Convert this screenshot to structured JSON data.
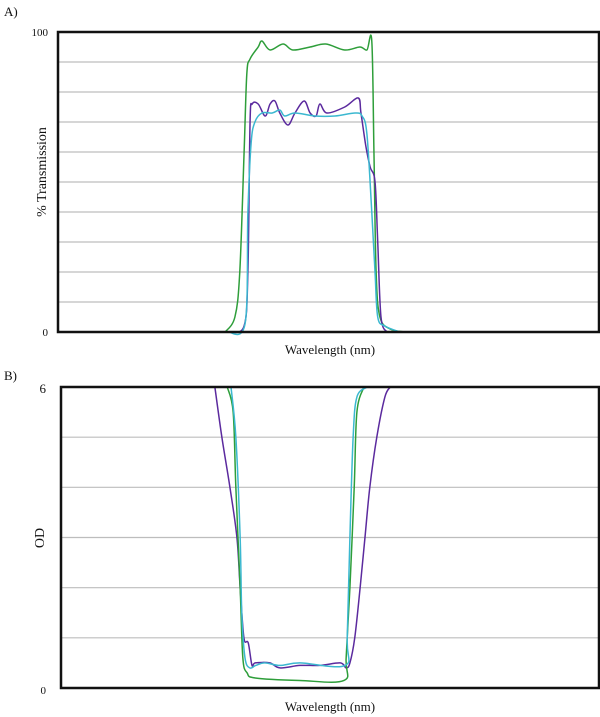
{
  "chart_data": [
    {
      "panel_label": "A)",
      "type": "line",
      "xlabel": "Wavelength (nm)",
      "ylabel": "% Transmission",
      "ylim": [
        0,
        100
      ],
      "xlim": [
        0,
        100
      ],
      "y_tick_labels": [
        "0",
        "100"
      ],
      "y_grid_step": 10,
      "grid": true,
      "legend": "none",
      "series": [
        {
          "color": "#2e9e3a",
          "x": [
            30.9,
            32.7,
            33.6,
            34.4,
            34.9,
            35.5,
            37.0,
            37.7,
            39.2,
            41.6,
            43.4,
            46.6,
            49.5,
            53.0,
            55.8,
            57.1,
            58.0,
            58.4,
            58.8,
            59.5,
            61.4,
            64.1
          ],
          "y": [
            0,
            5,
            20,
            60,
            86,
            91,
            95,
            97,
            94,
            96,
            94,
            95,
            96,
            94,
            95,
            94,
            97,
            60,
            20,
            5,
            1,
            0
          ]
        },
        {
          "color": "#5b2a9e",
          "x": [
            31.8,
            34.4,
            35.1,
            35.5,
            35.9,
            37.0,
            38.3,
            39.2,
            40.1,
            41.0,
            42.5,
            43.8,
            45.5,
            46.6,
            47.7,
            48.4,
            49.7,
            53.0,
            55.5,
            56.0,
            56.9,
            57.7,
            58.6,
            59.1,
            59.7,
            60.8
          ],
          "y": [
            0,
            2,
            20,
            70,
            76,
            76,
            72,
            76,
            77,
            73,
            69,
            73,
            77,
            73,
            72,
            76,
            73,
            75,
            78,
            73,
            62,
            55,
            50,
            30,
            5,
            0
          ]
        },
        {
          "color": "#3bb8d0",
          "x": [
            31.4,
            34.6,
            35.1,
            35.7,
            36.4,
            37.7,
            39.6,
            41.0,
            41.9,
            43.8,
            47.5,
            51.2,
            54.9,
            56.2,
            57.1,
            58.0,
            58.6,
            59.1,
            60.4,
            63.2
          ],
          "y": [
            0,
            3,
            40,
            63,
            70,
            73,
            73,
            74,
            72,
            73,
            72,
            72,
            73,
            72,
            66,
            40,
            20,
            5,
            2,
            0
          ]
        }
      ]
    },
    {
      "panel_label": "B)",
      "type": "line",
      "xlabel": "Wavelength (nm)",
      "ylabel": "OD",
      "ylim": [
        0,
        6
      ],
      "xlim": [
        0,
        100
      ],
      "y_tick_labels": [
        "0",
        "6"
      ],
      "y_grid_step": 1,
      "grid": true,
      "legend": "none",
      "series": [
        {
          "color": "#5b2a9e",
          "x": [
            28.6,
            29.9,
            31.4,
            32.7,
            33.3,
            34.0,
            34.8,
            35.5,
            36.1,
            38.8,
            40.7,
            44.4,
            48.1,
            51.9,
            53.0,
            53.7,
            54.6,
            55.6,
            56.5,
            57.4,
            58.7,
            60.2,
            61.2
          ],
          "y": [
            6,
            5,
            4,
            3,
            2,
            1,
            0.9,
            0.45,
            0.5,
            0.5,
            0.4,
            0.45,
            0.45,
            0.5,
            0.4,
            0.5,
            1,
            2,
            3,
            4,
            5,
            5.8,
            6
          ]
        },
        {
          "color": "#2e9e3a",
          "x": [
            30.9,
            32.0,
            32.5,
            33.3,
            33.8,
            34.6,
            36.1,
            44.4,
            52.6,
            53.0,
            53.7,
            54.5,
            55.0,
            56.3
          ],
          "y": [
            6,
            5.5,
            4,
            2,
            0.6,
            0.3,
            0.2,
            0.15,
            0.15,
            0.6,
            2,
            4,
            5.5,
            6
          ]
        },
        {
          "color": "#3bb8d0",
          "x": [
            31.6,
            32.5,
            33.3,
            33.6,
            34.2,
            35.1,
            36.2,
            37.9,
            40.7,
            44.4,
            52.8,
            53.2,
            53.7,
            54.3,
            55.0,
            56.9
          ],
          "y": [
            6,
            5,
            3,
            1.5,
            0.6,
            0.4,
            0.45,
            0.5,
            0.45,
            0.5,
            0.45,
            1,
            3,
            5,
            5.8,
            6
          ]
        }
      ]
    }
  ]
}
